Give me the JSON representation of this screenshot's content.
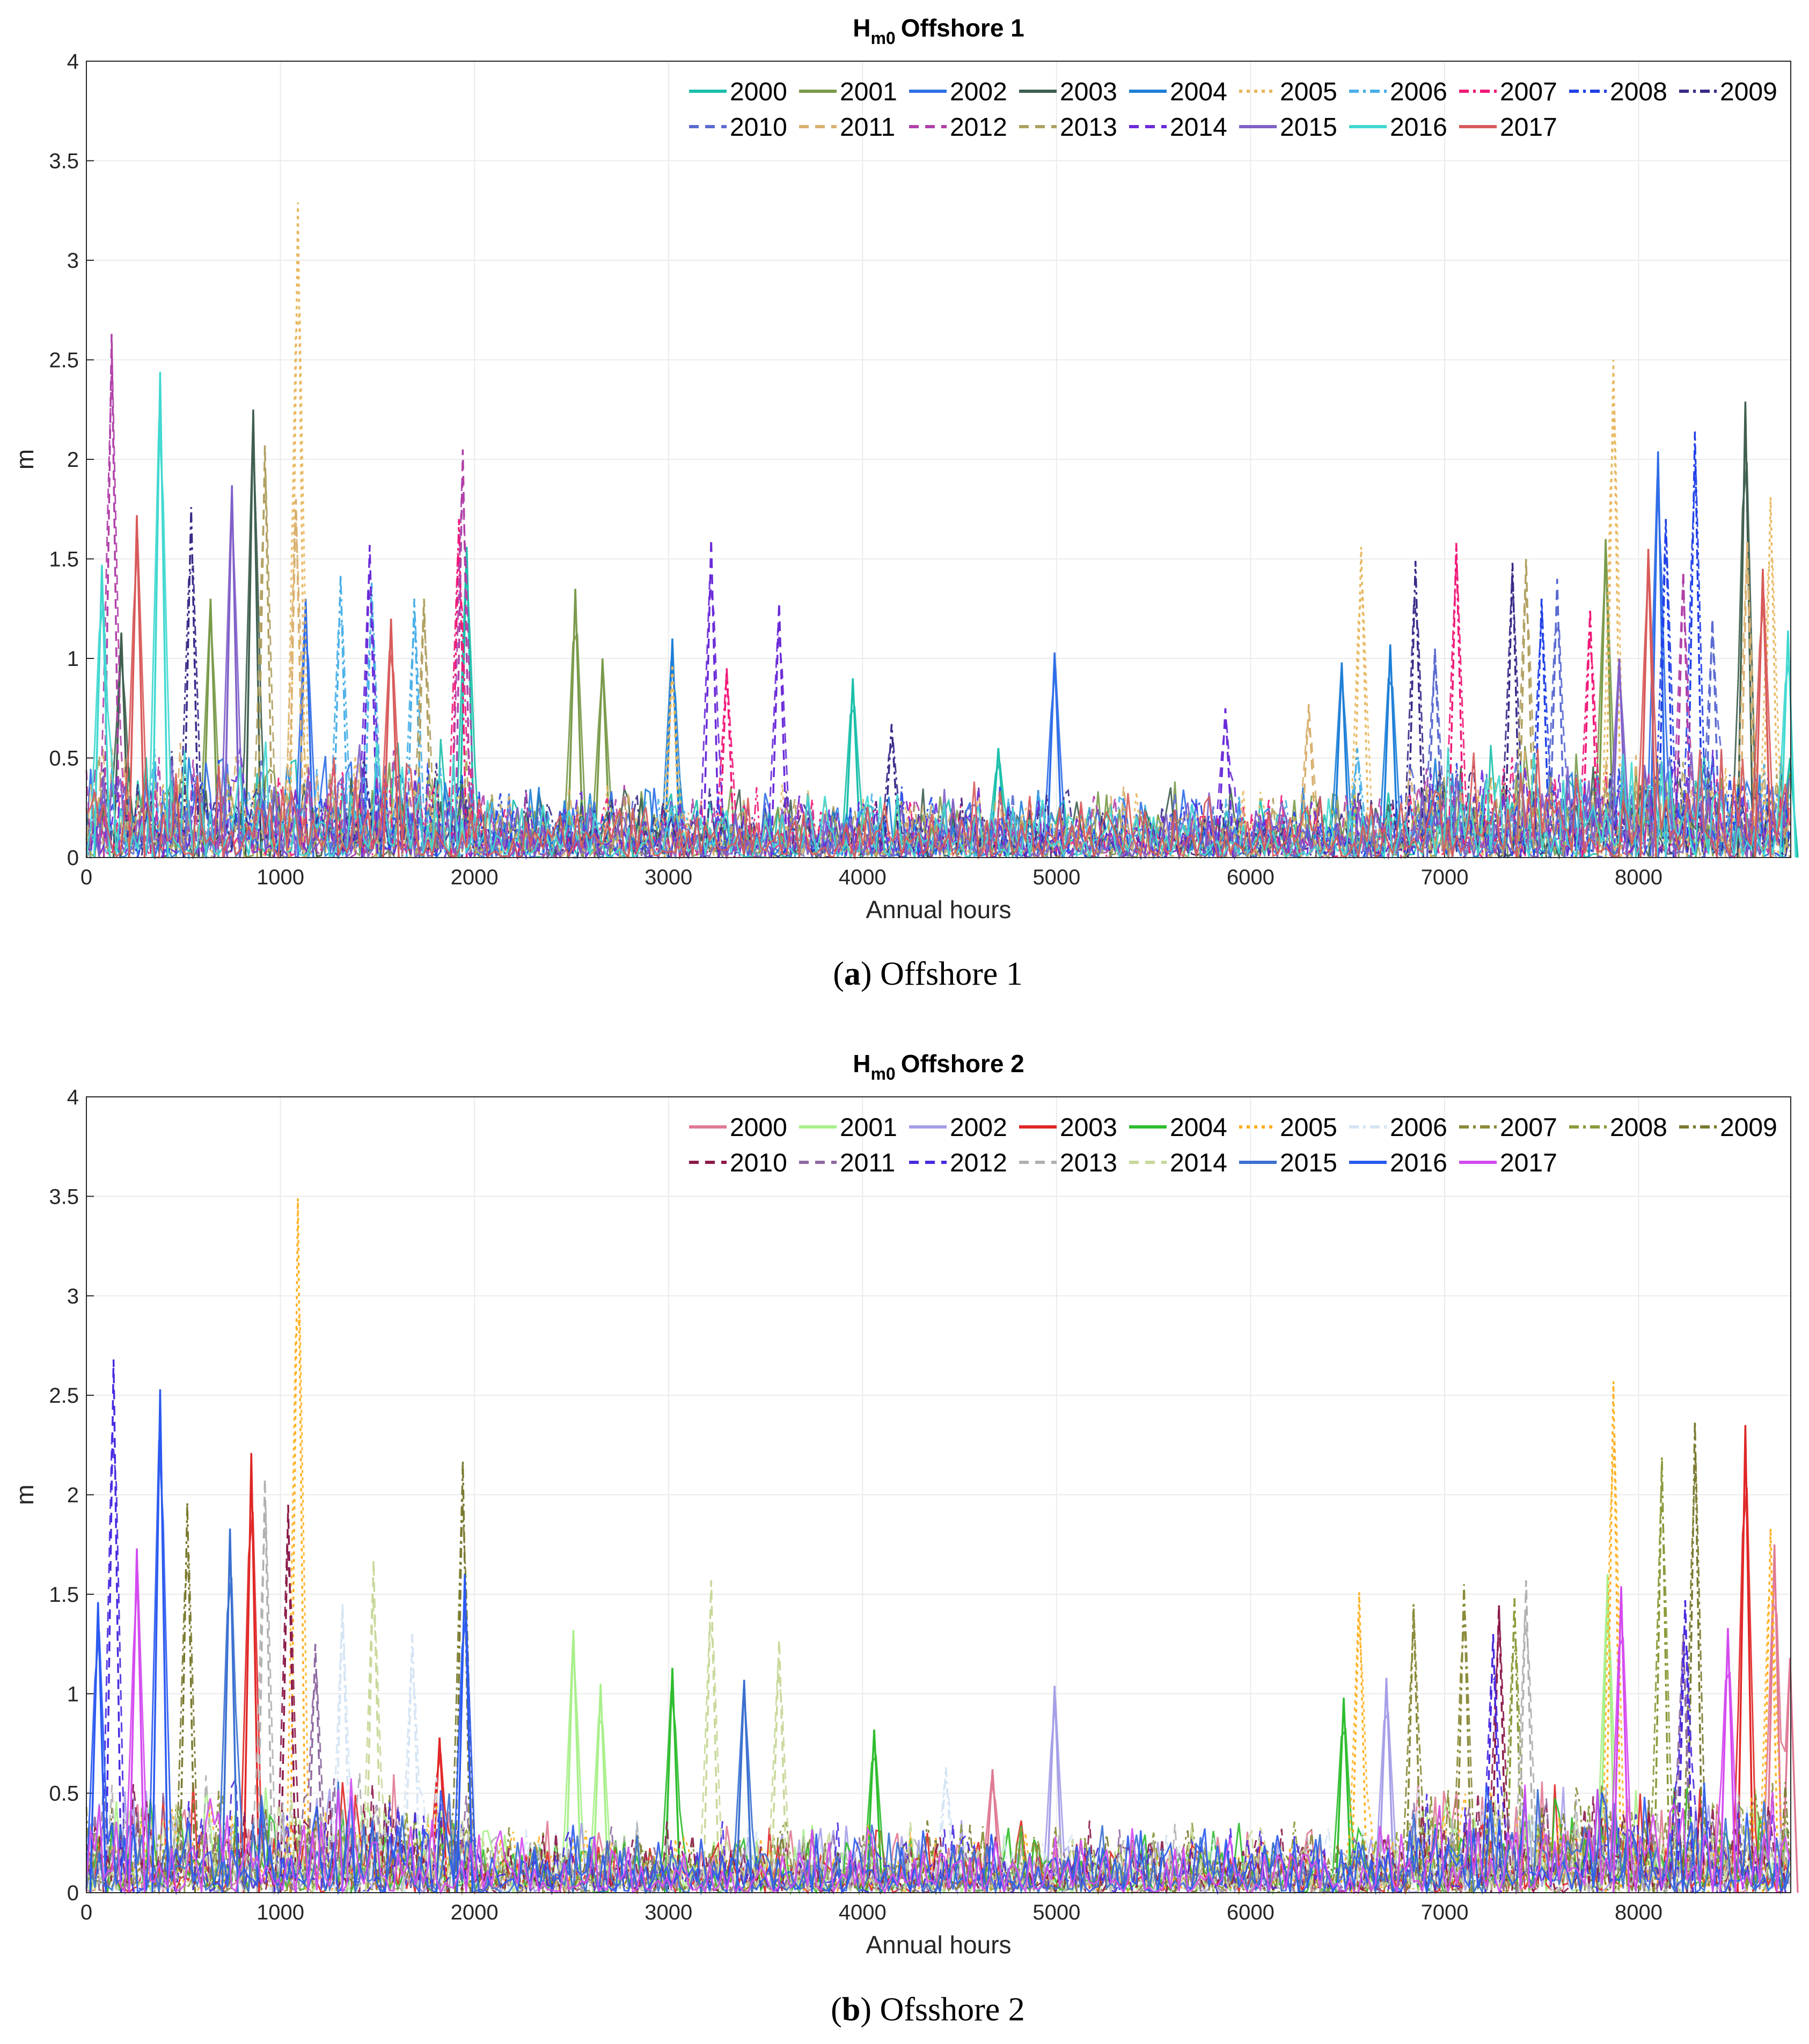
{
  "chart_data": [
    {
      "type": "line",
      "title": "Offshore 1",
      "title_prefix": "H",
      "title_subscript": "m0",
      "xlabel": "Annual hours",
      "ylabel": "m",
      "xlim": [
        0,
        8784
      ],
      "ylim": [
        0,
        4
      ],
      "xticks": [
        "0",
        "1000",
        "2000",
        "3000",
        "4000",
        "5000",
        "6000",
        "7000",
        "8000"
      ],
      "yticks": [
        "0",
        "0.5",
        "1",
        "1.5",
        "2",
        "2.5",
        "3",
        "3.5",
        "4"
      ],
      "grid": true,
      "legend_position": "top-right",
      "caption_letter": "a",
      "caption_text": "Offshore 1",
      "series": [
        {
          "name": "2000",
          "color": "#1abfaa",
          "dash": "solid",
          "peaks": [
            [
              1960,
              1.56
            ],
            [
              3950,
              0.9
            ],
            [
              4700,
              0.55
            ],
            [
              8780,
              0.5
            ]
          ]
        },
        {
          "name": "2001",
          "color": "#7a9a4a",
          "dash": "solid",
          "peaks": [
            [
              640,
              1.3
            ],
            [
              2520,
              1.35
            ],
            [
              7830,
              1.6
            ],
            [
              2660,
              1.0
            ]
          ]
        },
        {
          "name": "2002",
          "color": "#2f6ee8",
          "dash": "solid",
          "peaks": [
            [
              4990,
              1.03
            ],
            [
              8100,
              2.04
            ],
            [
              1130,
              1.3
            ]
          ]
        },
        {
          "name": "2003",
          "color": "#3f5f4f",
          "dash": "solid",
          "peaks": [
            [
              860,
              2.25
            ],
            [
              8550,
              2.29
            ],
            [
              180,
              1.13
            ]
          ]
        },
        {
          "name": "2004",
          "color": "#1e7fd8",
          "dash": "solid",
          "peaks": [
            [
              3020,
              1.1
            ],
            [
              6470,
              0.98
            ],
            [
              6720,
              1.07
            ]
          ]
        },
        {
          "name": "2005",
          "color": "#e8b860",
          "dash": "dot",
          "peaks": [
            [
              1090,
              3.29
            ],
            [
              7870,
              2.5
            ],
            [
              6570,
              1.56
            ],
            [
              8680,
              1.81
            ],
            [
              3020,
              0.97
            ]
          ]
        },
        {
          "name": "2006",
          "color": "#4ab0e8",
          "dash": "dashdot",
          "peaks": [
            [
              1310,
              1.42
            ],
            [
              1470,
              1.38
            ],
            [
              1690,
              1.3
            ],
            [
              6550,
              0.55
            ]
          ]
        },
        {
          "name": "2007",
          "color": "#f01878",
          "dash": "dashdot",
          "peaks": [
            [
              1920,
              1.7
            ],
            [
              3300,
              0.95
            ],
            [
              7060,
              1.58
            ],
            [
              7750,
              1.25
            ]
          ]
        },
        {
          "name": "2008",
          "color": "#2040e8",
          "dash": "dashdot",
          "peaks": [
            [
              8290,
              2.14
            ],
            [
              8140,
              1.7
            ],
            [
              7500,
              1.3
            ]
          ]
        },
        {
          "name": "2009",
          "color": "#3a2a88",
          "dash": "dashdot",
          "peaks": [
            [
              540,
              1.76
            ],
            [
              6850,
              1.49
            ],
            [
              7350,
              1.48
            ],
            [
              4150,
              0.67
            ]
          ]
        },
        {
          "name": "2010",
          "color": "#5a6ad0",
          "dash": "dash",
          "peaks": [
            [
              7580,
              1.4
            ],
            [
              6950,
              1.05
            ],
            [
              8380,
              1.2
            ]
          ]
        },
        {
          "name": "2011",
          "color": "#d8b070",
          "dash": "dash",
          "peaks": [
            [
              1080,
              1.8
            ],
            [
              8560,
              1.6
            ],
            [
              6300,
              0.77
            ]
          ]
        },
        {
          "name": "2012",
          "color": "#b040a8",
          "dash": "dash",
          "peaks": [
            [
              130,
              2.63
            ],
            [
              1940,
              2.05
            ],
            [
              8230,
              1.44
            ]
          ]
        },
        {
          "name": "2013",
          "color": "#b0a060",
          "dash": "dash",
          "peaks": [
            [
              920,
              2.07
            ],
            [
              1740,
              1.3
            ],
            [
              7420,
              1.5
            ]
          ]
        },
        {
          "name": "2014",
          "color": "#6a2ad8",
          "dash": "dash",
          "peaks": [
            [
              1460,
              1.57
            ],
            [
              3220,
              1.6
            ],
            [
              3570,
              1.28
            ],
            [
              5870,
              0.75
            ]
          ]
        },
        {
          "name": "2015",
          "color": "#8060c8",
          "dash": "solid",
          "peaks": [
            [
              750,
              1.87
            ],
            [
              7900,
              1.0
            ]
          ]
        },
        {
          "name": "2016",
          "color": "#40d8d0",
          "dash": "solid",
          "peaks": [
            [
              380,
              2.44
            ],
            [
              8770,
              1.14
            ],
            [
              80,
              1.47
            ]
          ]
        },
        {
          "name": "2017",
          "color": "#d85a5a",
          "dash": "solid",
          "peaks": [
            [
              260,
              1.72
            ],
            [
              1570,
              1.2
            ],
            [
              8050,
              1.55
            ],
            [
              8640,
              1.45
            ]
          ]
        }
      ]
    },
    {
      "type": "line",
      "title": "Offshore 2",
      "title_prefix": "H",
      "title_subscript": "m0",
      "xlabel": "Annual hours",
      "ylabel": "m",
      "xlim": [
        0,
        8784
      ],
      "ylim": [
        0,
        4
      ],
      "xticks": [
        "0",
        "1000",
        "2000",
        "3000",
        "4000",
        "5000",
        "6000",
        "7000",
        "8000"
      ],
      "yticks": [
        "0",
        "0.5",
        "1",
        "1.5",
        "2",
        "2.5",
        "3",
        "3.5",
        "4"
      ],
      "grid": true,
      "legend_position": "top-right",
      "caption_letter": "b",
      "caption_text": "Ofsshore 2",
      "series": [
        {
          "name": "2000",
          "color": "#e07a94",
          "dash": "solid",
          "peaks": [
            [
              8700,
              1.75
            ],
            [
              8780,
              1.18
            ],
            [
              4670,
              0.62
            ]
          ]
        },
        {
          "name": "2001",
          "color": "#a8f08a",
          "dash": "solid",
          "peaks": [
            [
              2510,
              1.32
            ],
            [
              7840,
              1.6
            ],
            [
              2650,
              1.05
            ]
          ]
        },
        {
          "name": "2002",
          "color": "#a59ee8",
          "dash": "solid",
          "peaks": [
            [
              4990,
              1.04
            ],
            [
              6700,
              1.08
            ]
          ]
        },
        {
          "name": "2003",
          "color": "#e02626",
          "dash": "solid",
          "peaks": [
            [
              850,
              2.21
            ],
            [
              8550,
              2.35
            ],
            [
              1820,
              0.78
            ]
          ]
        },
        {
          "name": "2004",
          "color": "#2ebd2e",
          "dash": "solid",
          "peaks": [
            [
              3020,
              1.13
            ],
            [
              6480,
              0.98
            ],
            [
              4060,
              0.82
            ]
          ]
        },
        {
          "name": "2005",
          "color": "#ffb020",
          "dash": "dot",
          "peaks": [
            [
              1090,
              3.49
            ],
            [
              7870,
              2.57
            ],
            [
              6560,
              1.51
            ],
            [
              8680,
              1.83
            ]
          ]
        },
        {
          "name": "2006",
          "color": "#d4e4f4",
          "dash": "dashdot",
          "peaks": [
            [
              1320,
              1.45
            ],
            [
              1680,
              1.3
            ],
            [
              4430,
              0.63
            ]
          ]
        },
        {
          "name": "2007",
          "color": "#8a8a3a",
          "dash": "dashdot",
          "peaks": [
            [
              7100,
              1.55
            ],
            [
              6840,
              1.45
            ]
          ]
        },
        {
          "name": "2008",
          "color": "#8a9a3a",
          "dash": "dashdot",
          "peaks": [
            [
              8120,
              2.19
            ],
            [
              7360,
              1.48
            ]
          ]
        },
        {
          "name": "2009",
          "color": "#7a7a30",
          "dash": "dashdot",
          "peaks": [
            [
              1940,
              2.17
            ],
            [
              8290,
              2.37
            ],
            [
              520,
              1.96
            ]
          ]
        },
        {
          "name": "2010",
          "color": "#8b1a4a",
          "dash": "dash",
          "peaks": [
            [
              1040,
              1.95
            ],
            [
              7280,
              1.45
            ]
          ]
        },
        {
          "name": "2011",
          "color": "#8e6aa0",
          "dash": "dash",
          "peaks": [
            [
              1180,
              1.25
            ],
            [
              8230,
              1.3
            ]
          ]
        },
        {
          "name": "2012",
          "color": "#4a2ae0",
          "dash": "dash",
          "peaks": [
            [
              140,
              2.68
            ],
            [
              7250,
              1.3
            ],
            [
              8240,
              1.47
            ]
          ]
        },
        {
          "name": "2013",
          "color": "#b0b0b0",
          "dash": "dash",
          "peaks": [
            [
              7420,
              1.57
            ],
            [
              920,
              2.08
            ]
          ]
        },
        {
          "name": "2014",
          "color": "#c8d89a",
          "dash": "dash",
          "peaks": [
            [
              1480,
              1.67
            ],
            [
              3220,
              1.57
            ],
            [
              3570,
              1.27
            ]
          ]
        },
        {
          "name": "2015",
          "color": "#3a70d0",
          "dash": "solid",
          "peaks": [
            [
              740,
              1.83
            ],
            [
              3390,
              1.07
            ]
          ]
        },
        {
          "name": "2016",
          "color": "#2a5af0",
          "dash": "solid",
          "peaks": [
            [
              380,
              2.53
            ],
            [
              60,
              1.46
            ],
            [
              1950,
              1.6
            ]
          ]
        },
        {
          "name": "2017",
          "color": "#d44af0",
          "dash": "solid",
          "peaks": [
            [
              260,
              1.73
            ],
            [
              7910,
              1.54
            ],
            [
              8460,
              1.33
            ]
          ]
        }
      ]
    }
  ]
}
